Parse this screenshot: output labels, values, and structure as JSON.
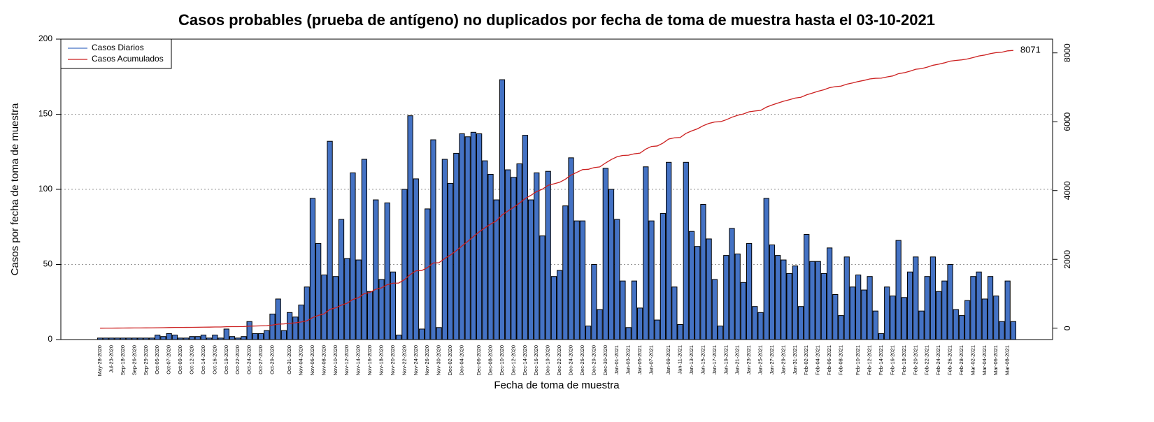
{
  "chart_data": {
    "type": "bar",
    "title": "Casos probables (prueba de antígeno) no duplicados por fecha de toma de muestra hasta el 03-10-2021",
    "x_label": "Fecha de toma de muestra",
    "y_label": "Casos por fecha de toma de muestra",
    "categories": [
      "May-28-2020",
      null,
      "Jul-23-2020",
      null,
      "Sep-18-2020",
      null,
      "Sep-26-2020",
      null,
      "Sep-29-2020",
      null,
      "Oct-05-2020",
      null,
      "Oct-07-2020",
      null,
      "Oct-09-2020",
      null,
      "Oct-12-2020",
      null,
      "Oct-14-2020",
      null,
      "Oct-16-2020",
      null,
      "Oct-19-2020",
      null,
      "Oct-22-2020",
      null,
      "Oct-24-2020",
      null,
      "Oct-27-2020",
      null,
      "Oct-29-2020",
      null,
      null,
      "Oct-31-2020",
      null,
      "Nov-04-2020",
      null,
      "Nov-06-2020",
      null,
      "Nov-08-2020",
      null,
      "Nov-10-2020",
      null,
      "Nov-12-2020",
      null,
      "Nov-14-2020",
      null,
      "Nov-16-2020",
      null,
      "Nov-18-2020",
      null,
      "Nov-20-2020",
      null,
      "Nov-22-2020",
      null,
      "Nov-24-2020",
      null,
      "Nov-26-2020",
      null,
      "Nov-30-2020",
      null,
      "Dec-02-2020",
      null,
      "Dec-04-2020",
      null,
      null,
      "Dec-06-2020",
      null,
      "Dec-08-2020",
      null,
      "Dec-10-2020",
      null,
      "Dec-12-2020",
      null,
      "Dec-14-2020",
      null,
      "Dec-16-2020",
      null,
      "Dec-19-2020",
      null,
      "Dec-22-2020",
      null,
      "Dec-24-2020",
      null,
      "Dec-26-2020",
      null,
      "Dec-29-2020",
      null,
      "Dec-30-2020",
      null,
      "Jan-01-2021",
      null,
      "Jan-03-2021",
      null,
      "Jan-05-2021",
      null,
      "Jan-07-2021",
      null,
      null,
      "Jan-09-2021",
      null,
      "Jan-11-2021",
      null,
      "Jan-13-2021",
      null,
      "Jan-15-2021",
      null,
      "Jan-17-2021",
      null,
      "Jan-19-2021",
      null,
      "Jan-21-2021",
      null,
      "Jan-23-2021",
      null,
      "Jan-25-2021",
      null,
      "Jan-27-2021",
      null,
      "Jan-29-2021",
      null,
      "Jan-31-2021",
      null,
      "Feb-02-2021",
      null,
      "Feb-04-2021",
      null,
      "Feb-06-2021",
      null,
      "Feb-08-2021",
      null,
      null,
      "Feb-10-2021",
      null,
      "Feb-12-2021",
      null,
      "Feb-14-2021",
      null,
      "Feb-16-2021",
      null,
      "Feb-18-2021",
      null,
      "Feb-20-2021",
      null,
      "Feb-22-2021",
      null,
      "Feb-24-2021",
      null,
      "Feb-26-2021",
      null,
      "Feb-28-2021",
      null,
      "Mar-02-2021",
      null,
      "Mar-04-2021",
      null,
      "Mar-06-2021",
      null,
      "Mar-08-2021",
      null
    ],
    "series": [
      {
        "name": "Casos Diarios",
        "color": "#4472c4",
        "type": "bar",
        "values": [
          1,
          1,
          1,
          1,
          1,
          1,
          1,
          1,
          1,
          1,
          3,
          2,
          4,
          3,
          1,
          1,
          2,
          2,
          3,
          1,
          3,
          1,
          7,
          2,
          1,
          2,
          12,
          4,
          4,
          6,
          17,
          27,
          6,
          18,
          15,
          23,
          35,
          94,
          64,
          43,
          132,
          42,
          80,
          54,
          111,
          53,
          120,
          32,
          93,
          40,
          91,
          45,
          3,
          100,
          149,
          107,
          7,
          87,
          133,
          8,
          120,
          104,
          124,
          137,
          135,
          138,
          137,
          119,
          110,
          93,
          173,
          113,
          108,
          117,
          136,
          93,
          111,
          69,
          112,
          42,
          46,
          89,
          121,
          79,
          79,
          9,
          50,
          20,
          114,
          100,
          80,
          39,
          8,
          39,
          21,
          115,
          79,
          13,
          84,
          118,
          35,
          10,
          118,
          72,
          62,
          90,
          67,
          40,
          9,
          56,
          74,
          57,
          38,
          64,
          22,
          18,
          94,
          63,
          56,
          53,
          44,
          49,
          22,
          70,
          52,
          52,
          44,
          61,
          30,
          16,
          55,
          35,
          43,
          33,
          42,
          19,
          4,
          35,
          29,
          66,
          28,
          45,
          55,
          19,
          42,
          55,
          32,
          39,
          50,
          20,
          16,
          26,
          42,
          45,
          27,
          42,
          29,
          12,
          39,
          12
        ]
      },
      {
        "name": "Casos Acumulados",
        "color": "#cc2020",
        "type": "line",
        "axis": "y2",
        "values": [
          1,
          2,
          3,
          4,
          5,
          6,
          7,
          8,
          9,
          10,
          13,
          15,
          19,
          22,
          23,
          24,
          26,
          28,
          31,
          32,
          35,
          36,
          43,
          45,
          46,
          48,
          60,
          64,
          68,
          74,
          91,
          118,
          124,
          142,
          157,
          180,
          215,
          309,
          373,
          416,
          548,
          590,
          670,
          724,
          835,
          888,
          1008,
          1040,
          1133,
          1173,
          1264,
          1309,
          1312,
          1412,
          1561,
          1668,
          1675,
          1762,
          1895,
          1903,
          2023,
          2127,
          2251,
          2388,
          2523,
          2661,
          2798,
          2917,
          3027,
          3120,
          3293,
          3406,
          3514,
          3631,
          3767,
          3860,
          3971,
          4040,
          4152,
          4194,
          4240,
          4329,
          4450,
          4529,
          4608,
          4617,
          4667,
          4687,
          4801,
          4901,
          4981,
          5020,
          5028,
          5067,
          5088,
          5203,
          5282,
          5295,
          5379,
          5497,
          5532,
          5542,
          5660,
          5732,
          5794,
          5884,
          5951,
          5991,
          6000,
          6056,
          6130,
          6187,
          6225,
          6289,
          6311,
          6329,
          6423,
          6486,
          6542,
          6595,
          6639,
          6688,
          6710,
          6780,
          6832,
          6884,
          6928,
          6989,
          7019,
          7035,
          7090,
          7125,
          7168,
          7201,
          7243,
          7262,
          7266,
          7301,
          7330,
          7396,
          7424,
          7469,
          7524,
          7543,
          7585,
          7640,
          7672,
          7711,
          7761,
          7781,
          7797,
          7823,
          7865,
          7910,
          7937,
          7979,
          8008,
          8020,
          8059,
          8071
        ]
      }
    ],
    "ylim": [
      0,
      200
    ],
    "yticks": [
      0,
      50,
      100,
      150,
      200
    ],
    "y2lim": [
      -330,
      8400
    ],
    "y2ticks": [
      0,
      2000,
      4000,
      6000,
      8000
    ],
    "grid": true,
    "legend": "top-left"
  }
}
